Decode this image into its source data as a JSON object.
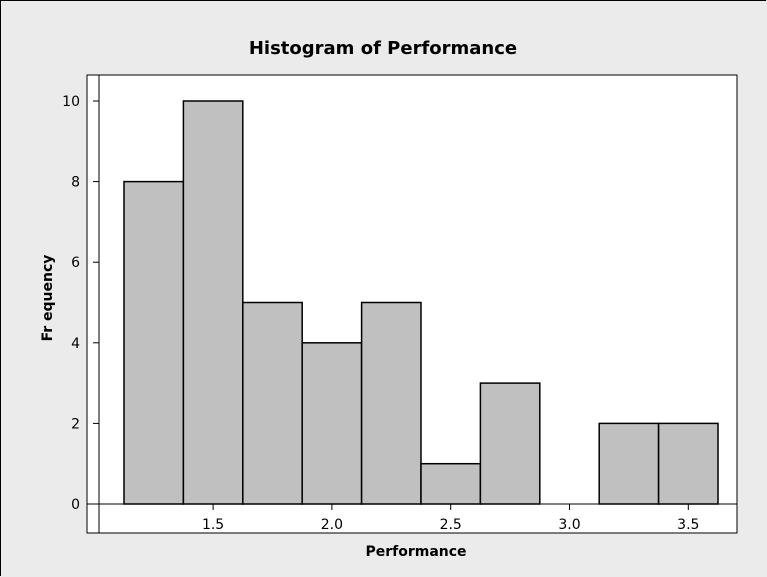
{
  "chart_data": {
    "type": "histogram",
    "title": "Histogram of Performance",
    "xlabel": "Performance",
    "ylabel": "Fr equency",
    "bins": [
      {
        "start": 1.125,
        "end": 1.375,
        "count": 8
      },
      {
        "start": 1.375,
        "end": 1.625,
        "count": 10
      },
      {
        "start": 1.625,
        "end": 1.875,
        "count": 5
      },
      {
        "start": 1.875,
        "end": 2.125,
        "count": 4
      },
      {
        "start": 2.125,
        "end": 2.375,
        "count": 5
      },
      {
        "start": 2.375,
        "end": 2.625,
        "count": 1
      },
      {
        "start": 2.625,
        "end": 2.875,
        "count": 3
      },
      {
        "start": 2.875,
        "end": 3.125,
        "count": 0
      },
      {
        "start": 3.125,
        "end": 3.375,
        "count": 2
      },
      {
        "start": 3.375,
        "end": 3.625,
        "count": 2
      }
    ],
    "xticks": [
      "1.5",
      "2.0",
      "2.5",
      "3.0",
      "3.5"
    ],
    "yticks": [
      "0",
      "2",
      "4",
      "6",
      "8",
      "10"
    ],
    "xlim": [
      1.04,
      3.77
    ],
    "ylim": [
      0,
      10.5
    ],
    "grid": false,
    "colors": {
      "bar_fill": "#c0c0c0",
      "bar_stroke": "#000000",
      "plot_bg": "#ffffff",
      "frame_bg": "#ebebeb"
    }
  }
}
